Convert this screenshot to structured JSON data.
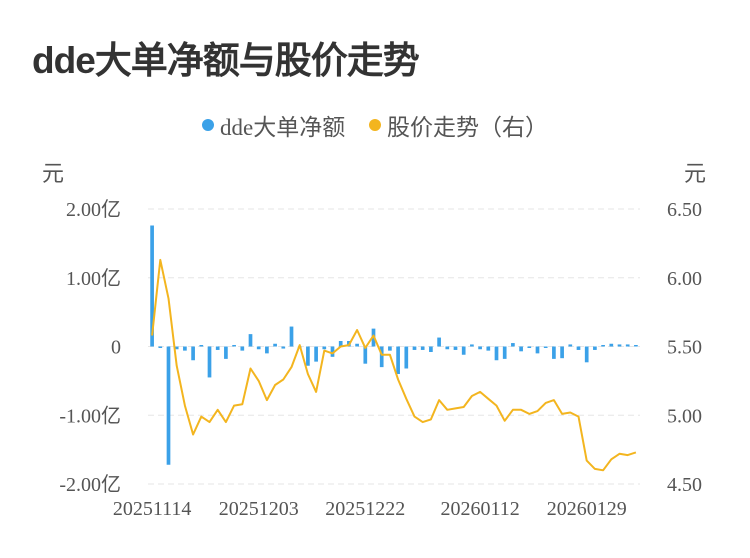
{
  "chart_data": {
    "type": "bar+line",
    "title": "dde大单净额与股价走势",
    "legend": [
      {
        "name": "dde大单净额",
        "color": "#3ba1e8"
      },
      {
        "name": "股价走势（右）",
        "color": "#f3b51f"
      }
    ],
    "y_left": {
      "unit": "元",
      "min": -2,
      "max": 2,
      "ticks": [
        2,
        1,
        0,
        -1,
        -2
      ],
      "tick_labels": [
        "2.00亿",
        "1.00亿",
        "0",
        "-1.00亿",
        "-2.00亿"
      ]
    },
    "y_right": {
      "unit": "元",
      "min": 4.5,
      "max": 6.5,
      "ticks": [
        6.5,
        6.0,
        5.5,
        5.0,
        4.5
      ],
      "tick_labels": [
        "6.50",
        "6.00",
        "5.50",
        "5.00",
        "4.50"
      ]
    },
    "x_tick_labels": [
      "20251114",
      "20251203",
      "20251222",
      "20260112",
      "20260129"
    ],
    "x_tick_index": [
      0,
      13,
      26,
      40,
      53
    ],
    "series": [
      {
        "name": "dde大单净额",
        "type": "bar",
        "unit": "亿",
        "values": [
          1.76,
          -0.02,
          -1.72,
          -0.04,
          -0.06,
          -0.2,
          0.01,
          -0.45,
          -0.05,
          -0.18,
          0.02,
          -0.06,
          0.18,
          -0.04,
          -0.1,
          0.04,
          -0.03,
          0.29,
          -0.01,
          -0.28,
          -0.22,
          -0.04,
          -0.15,
          0.08,
          0.08,
          0.04,
          -0.25,
          0.26,
          -0.3,
          -0.06,
          -0.4,
          -0.32,
          -0.05,
          -0.05,
          -0.08,
          0.13,
          -0.04,
          -0.05,
          -0.12,
          0.03,
          -0.04,
          -0.06,
          -0.2,
          -0.18,
          0.05,
          -0.07,
          -0.01,
          -0.1,
          -0.02,
          -0.18,
          -0.17,
          0.03,
          -0.05,
          -0.23,
          -0.05,
          0.0,
          0.04,
          0.03,
          0.03,
          0.02
        ]
      },
      {
        "name": "股价走势（右）",
        "type": "line",
        "values": [
          5.58,
          6.13,
          5.85,
          5.36,
          5.07,
          4.86,
          4.99,
          4.95,
          5.04,
          4.95,
          5.07,
          5.08,
          5.34,
          5.25,
          5.11,
          5.22,
          5.26,
          5.35,
          5.51,
          5.3,
          5.17,
          5.47,
          5.45,
          5.5,
          5.51,
          5.62,
          5.49,
          5.58,
          5.44,
          5.44,
          5.26,
          5.12,
          4.99,
          4.95,
          4.97,
          5.11,
          5.04,
          5.05,
          5.06,
          5.14,
          5.17,
          5.12,
          5.07,
          4.96,
          5.04,
          5.04,
          5.01,
          5.03,
          5.09,
          5.11,
          5.01,
          5.02,
          4.99,
          4.67,
          4.61,
          4.6,
          4.68,
          4.72,
          4.71,
          4.73
        ]
      }
    ]
  }
}
